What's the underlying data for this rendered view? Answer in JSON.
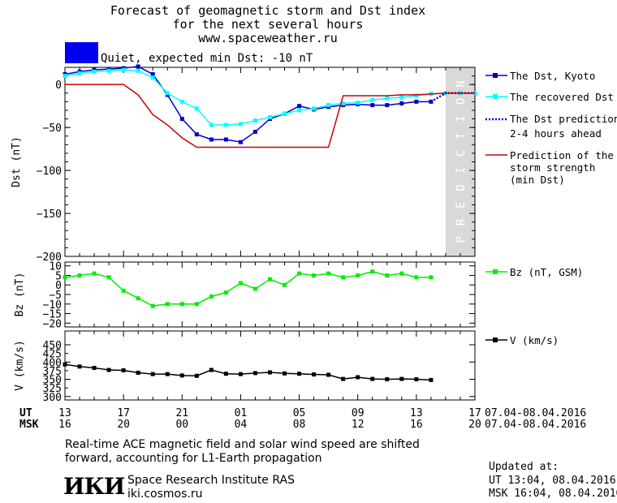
{
  "header": {
    "title_line1": "Forecast of geomagnetic storm and Dst index",
    "title_line2": "for the next several hours",
    "url": "www.spaceweather.ru",
    "status": "Quiet, expected min Dst: -10 nT",
    "status_color": "#0000ee"
  },
  "legend": {
    "dst_kyoto": "The Dst, Kyoto",
    "dst_recovered": "The recovered Dst",
    "dst_prediction_1": "The Dst prediction",
    "dst_prediction_2": "2-4 hours ahead",
    "storm_1": "Prediction of the",
    "storm_2": "storm strength",
    "storm_3": "(min Dst)",
    "bz": "Bz (nT, GSM)",
    "v": "V (km/s)"
  },
  "axis": {
    "ut_label": "UT",
    "msk_label": "MSK",
    "ut_ticks": [
      "13",
      "17",
      "21",
      "01",
      "05",
      "09",
      "13",
      "17"
    ],
    "msk_ticks": [
      "16",
      "20",
      "00",
      "04",
      "08",
      "12",
      "16",
      "20"
    ],
    "date_range_ut": "07.04-08.04.2016",
    "date_range_msk": "07.04-08.04.2016",
    "prediction_letters": [
      "P",
      "R",
      "E",
      "D",
      "I",
      "C",
      "T",
      "I",
      "O",
      "N"
    ]
  },
  "footer": {
    "note_1": "Real-time ACE magnetic field and solar wind speed are shifted",
    "note_2": "forward, accounting for L1-Earth propagation",
    "institute": "Space Research Institute RAS",
    "site": "iki.cosmos.ru",
    "logo": "ИКИ",
    "updated_label": "Updated at:",
    "updated_ut": "UT  13:04, 08.04.2016",
    "updated_msk": "MSK 16:04, 08.04.2016"
  },
  "colors": {
    "kyoto": "#0000cc",
    "recovered": "#00ffff",
    "prediction": "#0000cc",
    "storm": "#cc0000",
    "bz": "#00ee00",
    "v": "#000000",
    "prediction_band": "#d9d9d9"
  },
  "chart_data": [
    {
      "type": "line",
      "ylabel": "Dst (nT)",
      "xlim": [
        0,
        28
      ],
      "ylim": [
        -200,
        20
      ],
      "yticks": [
        0,
        -50,
        -100,
        -150,
        -200
      ],
      "prediction_band": [
        26,
        28
      ],
      "series": [
        {
          "name": "The Dst, Kyoto",
          "x": [
            0,
            1,
            2,
            3,
            4,
            5,
            6,
            7,
            8,
            9,
            10,
            11,
            12,
            13,
            14,
            15,
            16,
            17,
            18,
            19,
            20,
            21,
            22,
            23,
            24,
            25
          ],
          "y": [
            12,
            15,
            17,
            18,
            19,
            21,
            12,
            -12,
            -40,
            -58,
            -64,
            -64,
            -67,
            -55,
            -40,
            -34,
            -25,
            -29,
            -26,
            -24,
            -23,
            -24,
            -24,
            -22,
            -20,
            -20
          ]
        },
        {
          "name": "The recovered Dst",
          "x": [
            0,
            1,
            2,
            3,
            4,
            5,
            6,
            7,
            8,
            9,
            10,
            11,
            12,
            13,
            14,
            15,
            16,
            17,
            18,
            19,
            20,
            21,
            22,
            23,
            24,
            25,
            26,
            27,
            28
          ],
          "y": [
            10,
            13,
            15,
            16,
            17,
            16,
            8,
            -10,
            -20,
            -28,
            -47,
            -47,
            -46,
            -42,
            -38,
            -34,
            -30,
            -28,
            -24,
            -22,
            -21,
            -18,
            -16,
            -15,
            -13,
            -11,
            -10,
            -10,
            -10
          ]
        },
        {
          "name": "The Dst prediction 2-4 hours ahead",
          "x": [
            25,
            26,
            27,
            28
          ],
          "y": [
            -20,
            -10,
            -10,
            -10
          ]
        },
        {
          "name": "Prediction of the storm strength (min Dst)",
          "x": [
            0,
            4,
            5,
            6,
            7,
            8,
            9,
            10,
            11,
            12,
            13,
            14,
            15,
            16,
            17,
            18,
            19,
            20,
            21,
            22,
            23,
            24,
            25,
            26,
            27,
            28
          ],
          "y": [
            0,
            0,
            -12,
            -35,
            -47,
            -62,
            -73,
            -73,
            -73,
            -73,
            -73,
            -73,
            -73,
            -73,
            -73,
            -73,
            -13,
            -13,
            -13,
            -13,
            -12,
            -12,
            -11,
            -10,
            -10,
            -10
          ]
        }
      ]
    },
    {
      "type": "line",
      "ylabel": "Bz (nT)",
      "xlim": [
        0,
        28
      ],
      "ylim": [
        -22,
        12
      ],
      "yticks": [
        10,
        5,
        0,
        -5,
        -10,
        -15,
        -20
      ],
      "series": [
        {
          "name": "Bz (nT, GSM)",
          "x": [
            0,
            1,
            2,
            3,
            4,
            5,
            6,
            7,
            8,
            9,
            10,
            11,
            12,
            13,
            14,
            15,
            16,
            17,
            18,
            19,
            20,
            21,
            22,
            23,
            24,
            25
          ],
          "y": [
            4,
            5,
            6,
            4,
            -3,
            -7,
            -11,
            -10,
            -10,
            -10,
            -6,
            -4,
            1,
            -2,
            3,
            0,
            6,
            5,
            6,
            4,
            5,
            7,
            5,
            6,
            4,
            4
          ]
        }
      ]
    },
    {
      "type": "line",
      "ylabel": "V (km/s)",
      "xlim": [
        0,
        28
      ],
      "ylim": [
        290,
        490
      ],
      "yticks": [
        300,
        350,
        400,
        450
      ],
      "ytick_labels_extra": [
        325,
        375,
        425
      ],
      "series": [
        {
          "name": "V (km/s)",
          "x": [
            0,
            1,
            2,
            3,
            4,
            5,
            6,
            7,
            8,
            9,
            10,
            11,
            12,
            13,
            14,
            15,
            16,
            17,
            18,
            19,
            20,
            21,
            22,
            23,
            24,
            25
          ],
          "y": [
            393,
            387,
            383,
            377,
            376,
            369,
            365,
            365,
            361,
            360,
            377,
            366,
            365,
            368,
            370,
            367,
            366,
            364,
            363,
            351,
            356,
            351,
            350,
            351,
            350,
            348
          ]
        }
      ]
    }
  ]
}
